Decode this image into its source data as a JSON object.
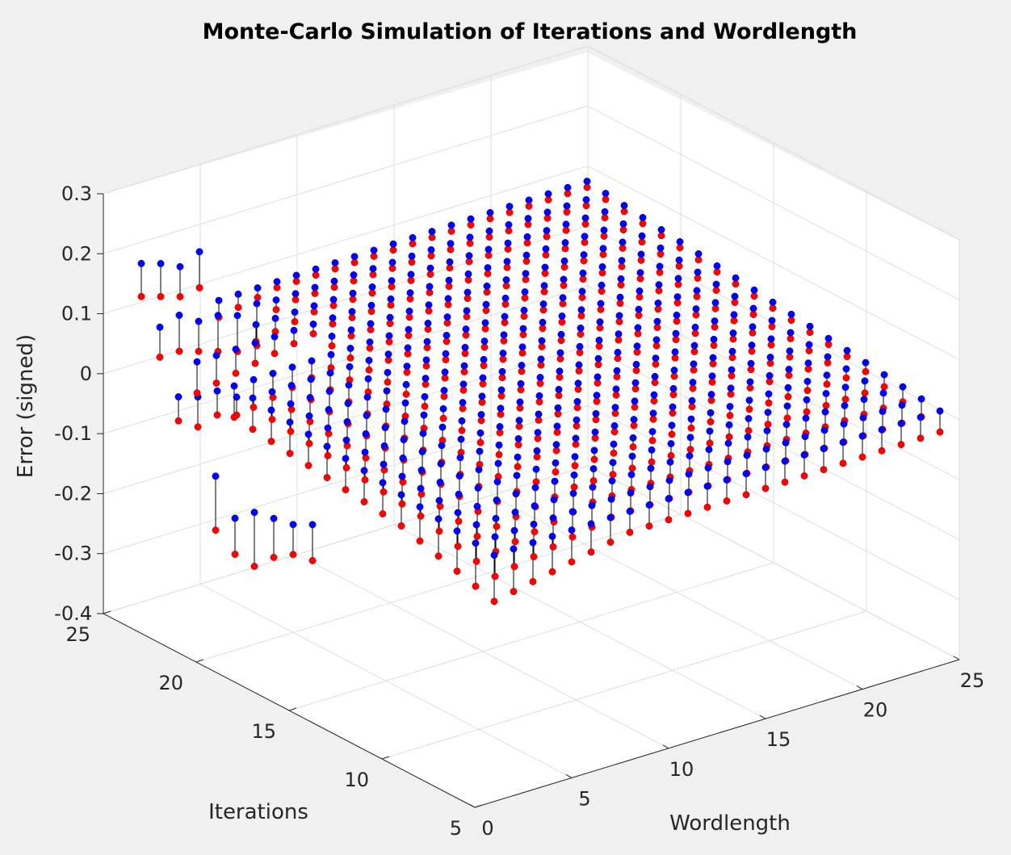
{
  "chart_data": {
    "type": "scatter",
    "subtype": "3d-stem",
    "title": "Monte-Carlo Simulation of Iterations and Wordlength",
    "xlabel": "Wordlength",
    "ylabel": "Iterations",
    "zlabel": "Error (signed)",
    "xlim": [
      0,
      25
    ],
    "ylim": [
      5,
      25
    ],
    "zlim": [
      -0.4,
      0.3
    ],
    "xticks": [
      "0",
      "5",
      "10",
      "15",
      "20",
      "25"
    ],
    "yticks": [
      "5",
      "10",
      "15",
      "20",
      "25"
    ],
    "zticks": [
      "-0.4",
      "-0.3",
      "-0.2",
      "-0.1",
      "0",
      "0.1",
      "0.2",
      "0.3"
    ],
    "grid": true,
    "view": "3d",
    "marker_colors": {
      "lower": "#ff0000",
      "upper": "#0000ff",
      "stem": "#000000"
    },
    "series": [
      {
        "name": "",
        "color": "#0000ff",
        "description": "upper error bound per (wordlength, iterations) pair"
      },
      {
        "name": "",
        "color": "#ff0000",
        "description": "lower error bound per (wordlength, iterations) pair"
      }
    ],
    "iterations_range": [
      5,
      24
    ],
    "wordlength_range": [
      1,
      24
    ],
    "points": [
      {
        "x": 1,
        "y": 24,
        "upper": 0.19,
        "lower": 0.135
      },
      {
        "x": 2,
        "y": 24,
        "upper": 0.18,
        "lower": 0.125
      },
      {
        "x": 3,
        "y": 24,
        "upper": 0.165,
        "lower": 0.115
      },
      {
        "x": 4,
        "y": 24,
        "upper": 0.18,
        "lower": 0.12
      },
      {
        "x": 1,
        "y": 20,
        "upper": -0.1,
        "lower": -0.19
      },
      {
        "x": 2,
        "y": 20,
        "upper": -0.18,
        "lower": -0.24
      },
      {
        "x": 3,
        "y": 20,
        "upper": -0.18,
        "lower": -0.27
      },
      {
        "x": 4,
        "y": 20,
        "upper": -0.2,
        "lower": -0.265
      },
      {
        "x": 5,
        "y": 20,
        "upper": -0.22,
        "lower": -0.27
      },
      {
        "x": 6,
        "y": 20,
        "upper": -0.23,
        "lower": -0.29
      },
      {
        "x": 1,
        "y": 22,
        "upper": 0.0,
        "lower": -0.04
      },
      {
        "x": 2,
        "y": 22,
        "upper": -0.01,
        "lower": -0.06
      },
      {
        "x": 3,
        "y": 22,
        "upper": -0.01,
        "lower": -0.05
      },
      {
        "x": 4,
        "y": 22,
        "upper": -0.03,
        "lower": -0.06
      },
      {
        "x": 1,
        "y": 23,
        "upper": 0.1,
        "lower": 0.05
      },
      {
        "x": 2,
        "y": 23,
        "upper": 0.11,
        "lower": 0.05
      },
      {
        "x": 3,
        "y": 23,
        "upper": 0.09,
        "lower": 0.04
      },
      {
        "x": 4,
        "y": 23,
        "upper": 0.09,
        "lower": 0.03
      },
      {
        "x": 5,
        "y": 23,
        "upper": 0.08,
        "lower": 0.02
      },
      {
        "x": 6,
        "y": 23,
        "upper": 0.09,
        "lower": 0.02
      }
    ],
    "surface_notes": "Remaining grid points (wordlength 5-24, iterations 5-24) converge to near-zero error; blue upper and red lower markers nearly coincide on a sloped plane."
  }
}
